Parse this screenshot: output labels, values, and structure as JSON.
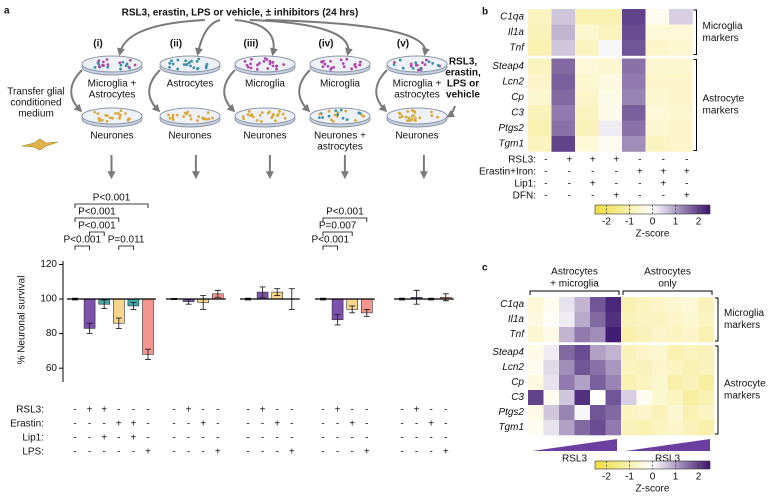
{
  "diagram": {
    "treatment": "RSL3, erastin, LPS or vehicle, ± inhibitors (24 hrs)",
    "conditions": [
      "(i)",
      "(ii)",
      "(iii)",
      "(iv)",
      "(v)"
    ],
    "top_cultures": [
      [
        "Microglia +",
        "Astrocytes"
      ],
      [
        "Astrocytes"
      ],
      [
        "Microglia"
      ],
      [
        "Microglia"
      ],
      [
        "Microglia +",
        "astrocytes"
      ]
    ],
    "bottom_cultures": [
      [
        "Neurones"
      ],
      [
        "Neurones"
      ],
      [
        "Neurones"
      ],
      [
        "Neurones +",
        "astrocytes"
      ],
      [
        "Neurones"
      ]
    ],
    "transfer": [
      "Transfer glial",
      "conditioned",
      "medium"
    ],
    "direct": [
      "RSL3,",
      "erastin,",
      "LPS or",
      "vehicle"
    ]
  },
  "chart_data": [
    {
      "type": "bar",
      "panel": "a",
      "ylabel": "% Neuronal survival",
      "ylim": [
        52,
        122
      ],
      "yticks": [
        60,
        80,
        100,
        120
      ],
      "baseline": 100,
      "condition_rows": [
        "RSL3:",
        "Erastin:",
        "Lip1:",
        "LPS:"
      ],
      "groups": [
        {
          "values": [
            100,
            83,
            97,
            86,
            96,
            68
          ],
          "errors": [
            0.5,
            3,
            2.5,
            3,
            2,
            3
          ],
          "colors": [
            "#ffffff",
            "#7d52ad",
            "#3fa9a3",
            "#f7d58a",
            "#3fa9a3",
            "#f4968e"
          ],
          "conditions": [
            [
              "-",
              "+",
              "+",
              "-",
              "-",
              "-"
            ],
            [
              "-",
              "-",
              "-",
              "+",
              "+",
              "-"
            ],
            [
              "-",
              "-",
              "+",
              "-",
              "+",
              "-"
            ],
            [
              "-",
              "-",
              "-",
              "-",
              "-",
              "+"
            ]
          ],
          "comparisons": [
            "P<0.001",
            "P<0.001",
            "P<0.001",
            "P<0.001",
            "P=0.011"
          ]
        },
        {
          "values": [
            100,
            98.5,
            98,
            103
          ],
          "errors": [
            0.3,
            1.5,
            4,
            2
          ],
          "colors": [
            "#ffffff",
            "#7d52ad",
            "#f7d58a",
            "#f4968e"
          ],
          "conditions": [
            [
              "-",
              "+",
              "-",
              "-"
            ],
            [
              "-",
              "-",
              "+",
              "-"
            ],
            [
              "-",
              "-",
              "-",
              "-"
            ],
            [
              "-",
              "-",
              "-",
              "+"
            ]
          ]
        },
        {
          "values": [
            100,
            104,
            104,
            100
          ],
          "errors": [
            0.5,
            3,
            2,
            6
          ],
          "colors": [
            "#ffffff",
            "#7d52ad",
            "#f7d58a",
            "#f4968e"
          ],
          "conditions": [
            [
              "-",
              "+",
              "-",
              "-"
            ],
            [
              "-",
              "-",
              "+",
              "-"
            ],
            [
              "-",
              "-",
              "-",
              "-"
            ],
            [
              "-",
              "-",
              "-",
              "+"
            ]
          ]
        },
        {
          "values": [
            100,
            88,
            94,
            92
          ],
          "errors": [
            0.5,
            3,
            2,
            2
          ],
          "colors": [
            "#ffffff",
            "#7d52ad",
            "#f7d58a",
            "#f4968e"
          ],
          "conditions": [
            [
              "-",
              "+",
              "-",
              "-"
            ],
            [
              "-",
              "-",
              "+",
              "-"
            ],
            [
              "-",
              "-",
              "-",
              "-"
            ],
            [
              "-",
              "-",
              "-",
              "+"
            ]
          ],
          "comparisons": [
            "P<0.001",
            "P=0.007",
            "P<0.001"
          ]
        },
        {
          "values": [
            100,
            101,
            100,
            101
          ],
          "errors": [
            0.5,
            4,
            0.5,
            2
          ],
          "colors": [
            "#ffffff",
            "#7d52ad",
            "#f7d58a",
            "#f4968e"
          ],
          "conditions": [
            [
              "-",
              "+",
              "-",
              "-"
            ],
            [
              "-",
              "-",
              "+",
              "-"
            ],
            [
              "-",
              "-",
              "-",
              "-"
            ],
            [
              "-",
              "-",
              "-",
              "+"
            ]
          ]
        }
      ]
    },
    {
      "type": "heatmap",
      "panel": "b",
      "rows": [
        "C1qa",
        "Il1a",
        "Tnf",
        "Steap4",
        "Lcn2",
        "Cp",
        "C3",
        "Ptgs2",
        "Tgm1"
      ],
      "values": [
        [
          -0.8,
          0.6,
          -1.0,
          -1.0,
          2.0,
          -0.2,
          0.5
        ],
        [
          -0.9,
          0.8,
          -0.6,
          -0.8,
          1.9,
          -0.5,
          -0.5
        ],
        [
          -1.0,
          0.6,
          -0.8,
          0.1,
          1.8,
          -0.7,
          -0.6
        ],
        [
          -0.8,
          1.6,
          -0.5,
          -0.6,
          1.5,
          -0.6,
          -0.6
        ],
        [
          -0.7,
          1.7,
          -0.6,
          -0.4,
          1.4,
          -0.7,
          -0.7
        ],
        [
          -0.6,
          1.6,
          -0.7,
          -0.3,
          1.3,
          -0.6,
          -0.7
        ],
        [
          -0.9,
          1.4,
          -0.8,
          -0.3,
          1.7,
          -0.5,
          -0.6
        ],
        [
          -1.0,
          1.5,
          -0.9,
          0.2,
          1.5,
          -0.6,
          -0.7
        ],
        [
          -0.8,
          2.0,
          -0.5,
          -0.2,
          1.2,
          -0.8,
          -0.7
        ]
      ],
      "zlim": [
        -2.5,
        2.5
      ],
      "zticks": [
        -2,
        -1,
        0,
        1,
        2
      ],
      "zlabel": "Z-score",
      "colormap": {
        "low": "#efdc3e",
        "mid": "#ffffff",
        "high": "#3a146e"
      },
      "row_groups": [
        [
          "Microglia",
          "markers"
        ],
        [
          "Astrocyte",
          "markers"
        ]
      ],
      "condition_rows": [
        "RSL3:",
        "Erastin+Iron:",
        "Lip1:",
        "DFN:"
      ],
      "conditions": [
        [
          "-",
          "+",
          "+",
          "+",
          "-",
          "-",
          "-"
        ],
        [
          "-",
          "-",
          "-",
          "-",
          "+",
          "+",
          "+"
        ],
        [
          "-",
          "-",
          "+",
          "-",
          "-",
          "+",
          "-"
        ],
        [
          "-",
          "-",
          "-",
          "+",
          "-",
          "-",
          "+"
        ]
      ]
    },
    {
      "type": "heatmap",
      "panel": "c",
      "rows": [
        "C1qa",
        "Il1a",
        "Tnf",
        "Steap4",
        "Lcn2",
        "Cp",
        "C3",
        "Ptgs2",
        "Tgm1"
      ],
      "values": [
        [
          -0.5,
          -0.2,
          0.3,
          0.8,
          1.8,
          2.3,
          -1.0,
          -0.8,
          -0.7,
          -0.6,
          -0.5,
          -0.9
        ],
        [
          -0.4,
          -0.1,
          0.2,
          0.9,
          1.6,
          2.2,
          -0.9,
          -0.8,
          -0.8,
          -0.7,
          -0.6,
          -0.8
        ],
        [
          -0.6,
          -0.3,
          0.8,
          1.4,
          1.2,
          2.4,
          -1.1,
          -0.9,
          -0.7,
          -0.8,
          -0.7,
          -1.0
        ],
        [
          -0.3,
          0.2,
          1.6,
          1.9,
          1.0,
          0.8,
          -0.9,
          -0.7,
          -0.6,
          -1.0,
          -0.8,
          -0.9
        ],
        [
          -0.2,
          0.4,
          1.2,
          1.8,
          1.5,
          1.1,
          -0.8,
          -0.9,
          -0.7,
          -0.8,
          -1.0,
          -0.9
        ],
        [
          -0.4,
          0.3,
          1.4,
          1.0,
          1.7,
          1.3,
          -1.0,
          -0.8,
          -0.6,
          -1.1,
          -0.9,
          -1.2
        ],
        [
          2.0,
          -0.2,
          0.6,
          2.2,
          0.0,
          1.8,
          0.5,
          -0.2,
          -0.6,
          -0.8,
          -1.2,
          -1.0
        ],
        [
          -0.3,
          0.6,
          1.3,
          0.1,
          1.8,
          1.6,
          -0.8,
          -0.7,
          -0.9,
          -0.6,
          -1.0,
          -0.8
        ],
        [
          -0.2,
          0.3,
          1.0,
          1.6,
          1.9,
          1.4,
          -0.9,
          -1.0,
          -0.8,
          -0.7,
          -0.9,
          -1.1
        ]
      ],
      "zlim": [
        -2.5,
        2.5
      ],
      "zticks": [
        -2,
        -1,
        0,
        1,
        2
      ],
      "zlabel": "Z-score",
      "colormap": {
        "low": "#efdc3e",
        "mid": "#ffffff",
        "high": "#3a146e"
      },
      "row_groups": [
        [
          "Microglia",
          "markers"
        ],
        [
          "Astrocyte",
          "markers"
        ]
      ],
      "column_groups": [
        [
          "Astrocytes",
          "+ microglia"
        ],
        [
          "Astrocytes",
          "only"
        ]
      ],
      "gradient_labels": [
        "RSL3",
        "RSL3"
      ]
    }
  ]
}
